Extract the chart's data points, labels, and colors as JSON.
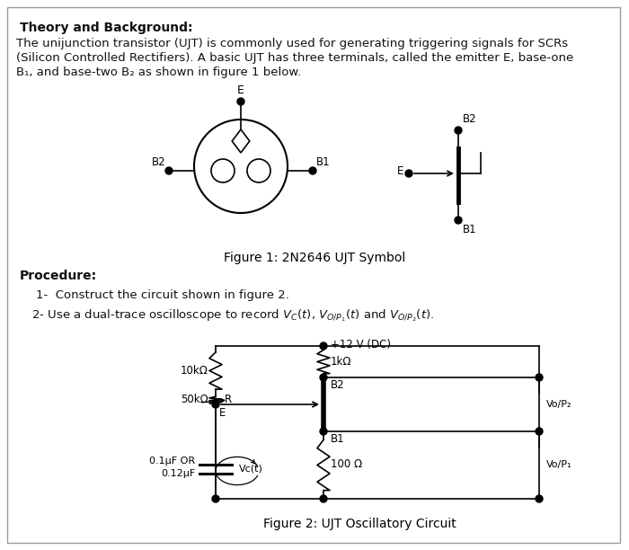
{
  "bg_color": "#ffffff",
  "border_color": "#aaaaaa",
  "title": "Theory and Background:",
  "body_line1": "The unijunction transistor (UJT) is commonly used for generating triggering signals for SCRs",
  "body_line2": "(Silicon Controlled Rectifiers). A basic UJT has three terminals, called the emitter E, base-one",
  "body_line3": "B₁, and base-two B₂ as shown in figure 1 below.",
  "fig1_caption": "Figure 1: 2N2646 UJT Symbol",
  "fig2_caption": "Figure 2: UJT Oscillatory Circuit",
  "procedure_title": "Procedure:",
  "proc1": "1-  Construct the circuit shown in figure 2.",
  "proc2": "2- Use a dual-trace oscilloscope to record Vₙ(t), Vₒ/ₘ₁(t) and Vₒ/ₘ₂(t).",
  "font_size_body": 9.5,
  "text_color": "#111111"
}
